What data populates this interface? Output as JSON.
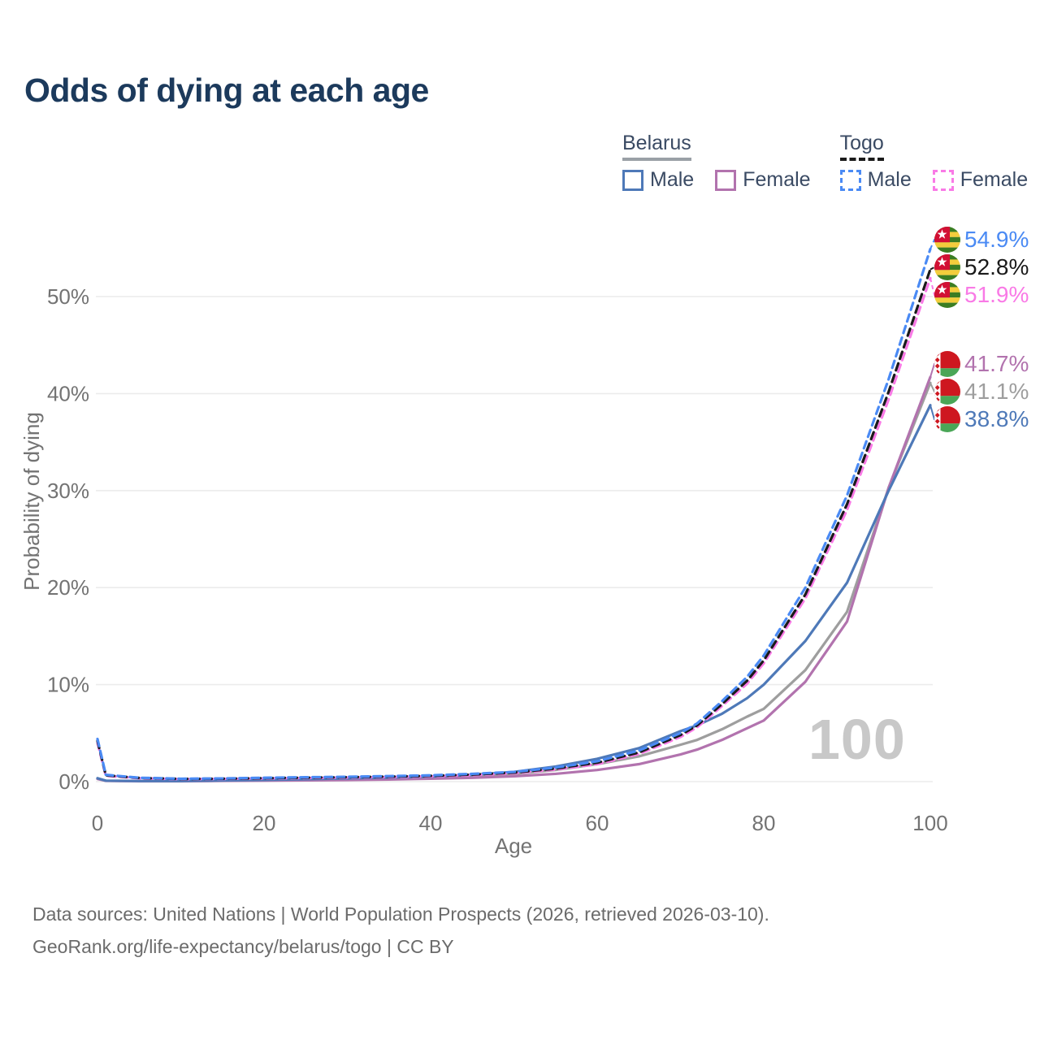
{
  "title": "Odds of dying at each age",
  "watermark": "100",
  "footer": {
    "line1": "Data sources: United Nations | World Population Prospects (2026, retrieved 2026-03-10).",
    "line2": "GeoRank.org/life-expectancy/belarus/togo | CC BY"
  },
  "legend": {
    "groups": [
      {
        "label": "Belarus",
        "line_style": "solid",
        "underline_color": "#9aa0a6",
        "items": [
          {
            "label": "Male",
            "color": "#4e79b8"
          },
          {
            "label": "Female",
            "color": "#b273ae"
          }
        ]
      },
      {
        "label": "Togo",
        "line_style": "dashed",
        "underline_color": "#1a1a1a",
        "items": [
          {
            "label": "Male",
            "color": "#4a8af4"
          },
          {
            "label": "Female",
            "color": "#f97ae6"
          }
        ]
      }
    ]
  },
  "chart_data": {
    "type": "line",
    "title": "Odds of dying at each age",
    "xlabel": "Age",
    "ylabel": "Probability of dying",
    "xlim": [
      0,
      100
    ],
    "ylim_pct": [
      0,
      57
    ],
    "grid": "horizontal",
    "x_ticks": [
      0,
      20,
      40,
      60,
      80,
      100
    ],
    "y_gridlines_pct": [
      0,
      10,
      20,
      30,
      40,
      50
    ],
    "y_ticks": [
      "0%",
      "10%",
      "20%",
      "30%",
      "40%",
      "50%"
    ],
    "ages": [
      0,
      1,
      5,
      10,
      15,
      20,
      25,
      30,
      35,
      40,
      45,
      50,
      55,
      60,
      65,
      70,
      72,
      75,
      78,
      80,
      85,
      90,
      95,
      100
    ],
    "series": [
      {
        "name": "Belarus Both sexes",
        "country": "Belarus",
        "sex": "Both sexes",
        "color": "#9e9e9e",
        "dash": false,
        "end_label": "41.1%",
        "values": [
          0.3,
          0.09,
          0.05,
          0.05,
          0.1,
          0.15,
          0.2,
          0.27,
          0.35,
          0.44,
          0.58,
          0.8,
          1.2,
          1.8,
          2.6,
          3.8,
          4.3,
          5.4,
          6.7,
          7.5,
          11.5,
          17.5,
          30.3,
          41.1
        ]
      },
      {
        "name": "Belarus Female",
        "country": "Belarus",
        "sex": "Female",
        "color": "#b273ae",
        "dash": false,
        "end_label": "41.7%",
        "values": [
          0.28,
          0.08,
          0.04,
          0.04,
          0.08,
          0.1,
          0.13,
          0.17,
          0.22,
          0.3,
          0.4,
          0.55,
          0.8,
          1.2,
          1.8,
          2.8,
          3.3,
          4.3,
          5.5,
          6.3,
          10.3,
          16.5,
          30.3,
          41.7
        ]
      },
      {
        "name": "Belarus Male",
        "country": "Belarus",
        "sex": "Male",
        "color": "#4e79b8",
        "dash": false,
        "end_label": "38.8%",
        "values": [
          0.35,
          0.1,
          0.06,
          0.06,
          0.12,
          0.18,
          0.25,
          0.33,
          0.42,
          0.52,
          0.7,
          1.0,
          1.55,
          2.35,
          3.45,
          5.2,
          5.8,
          7.0,
          8.6,
          10.0,
          14.5,
          20.5,
          30.0,
          38.8
        ]
      },
      {
        "name": "Togo Female",
        "country": "Togo",
        "sex": "Female",
        "color": "#f97ae6",
        "dash": true,
        "end_label": "51.9%",
        "values": [
          4.0,
          0.6,
          0.35,
          0.26,
          0.28,
          0.33,
          0.37,
          0.42,
          0.47,
          0.55,
          0.67,
          0.86,
          1.25,
          1.8,
          2.85,
          4.6,
          5.6,
          7.8,
          10.1,
          12.2,
          18.9,
          28.0,
          39.4,
          51.9
        ]
      },
      {
        "name": "Togo Both sexes",
        "country": "Togo",
        "sex": "Both sexes",
        "color": "#1a1a1a",
        "dash": true,
        "end_label": "52.8%",
        "values": [
          4.2,
          0.65,
          0.38,
          0.28,
          0.3,
          0.36,
          0.41,
          0.46,
          0.52,
          0.6,
          0.73,
          0.93,
          1.35,
          1.95,
          3.0,
          4.8,
          5.8,
          8.0,
          10.4,
          12.5,
          19.3,
          28.6,
          40.2,
          52.8
        ]
      },
      {
        "name": "Togo Male",
        "country": "Togo",
        "sex": "Male",
        "color": "#4a8af4",
        "dash": true,
        "end_label": "54.9%",
        "values": [
          4.4,
          0.7,
          0.4,
          0.3,
          0.33,
          0.4,
          0.45,
          0.5,
          0.57,
          0.65,
          0.8,
          1.0,
          1.45,
          2.1,
          3.2,
          5.0,
          6.0,
          8.3,
          10.8,
          13.0,
          20.0,
          29.5,
          41.5,
          54.9
        ]
      }
    ],
    "flag_colors": {
      "togo": {
        "green": "#3b7d23",
        "yellow": "#f3cd3c",
        "red": "#d21034",
        "star": "#ffffff"
      },
      "belarus": {
        "red": "#ce1720",
        "green": "#4aa657",
        "white": "#ffffff"
      }
    },
    "axis_text_color": "#737373",
    "gridline_color": "#ececec"
  }
}
